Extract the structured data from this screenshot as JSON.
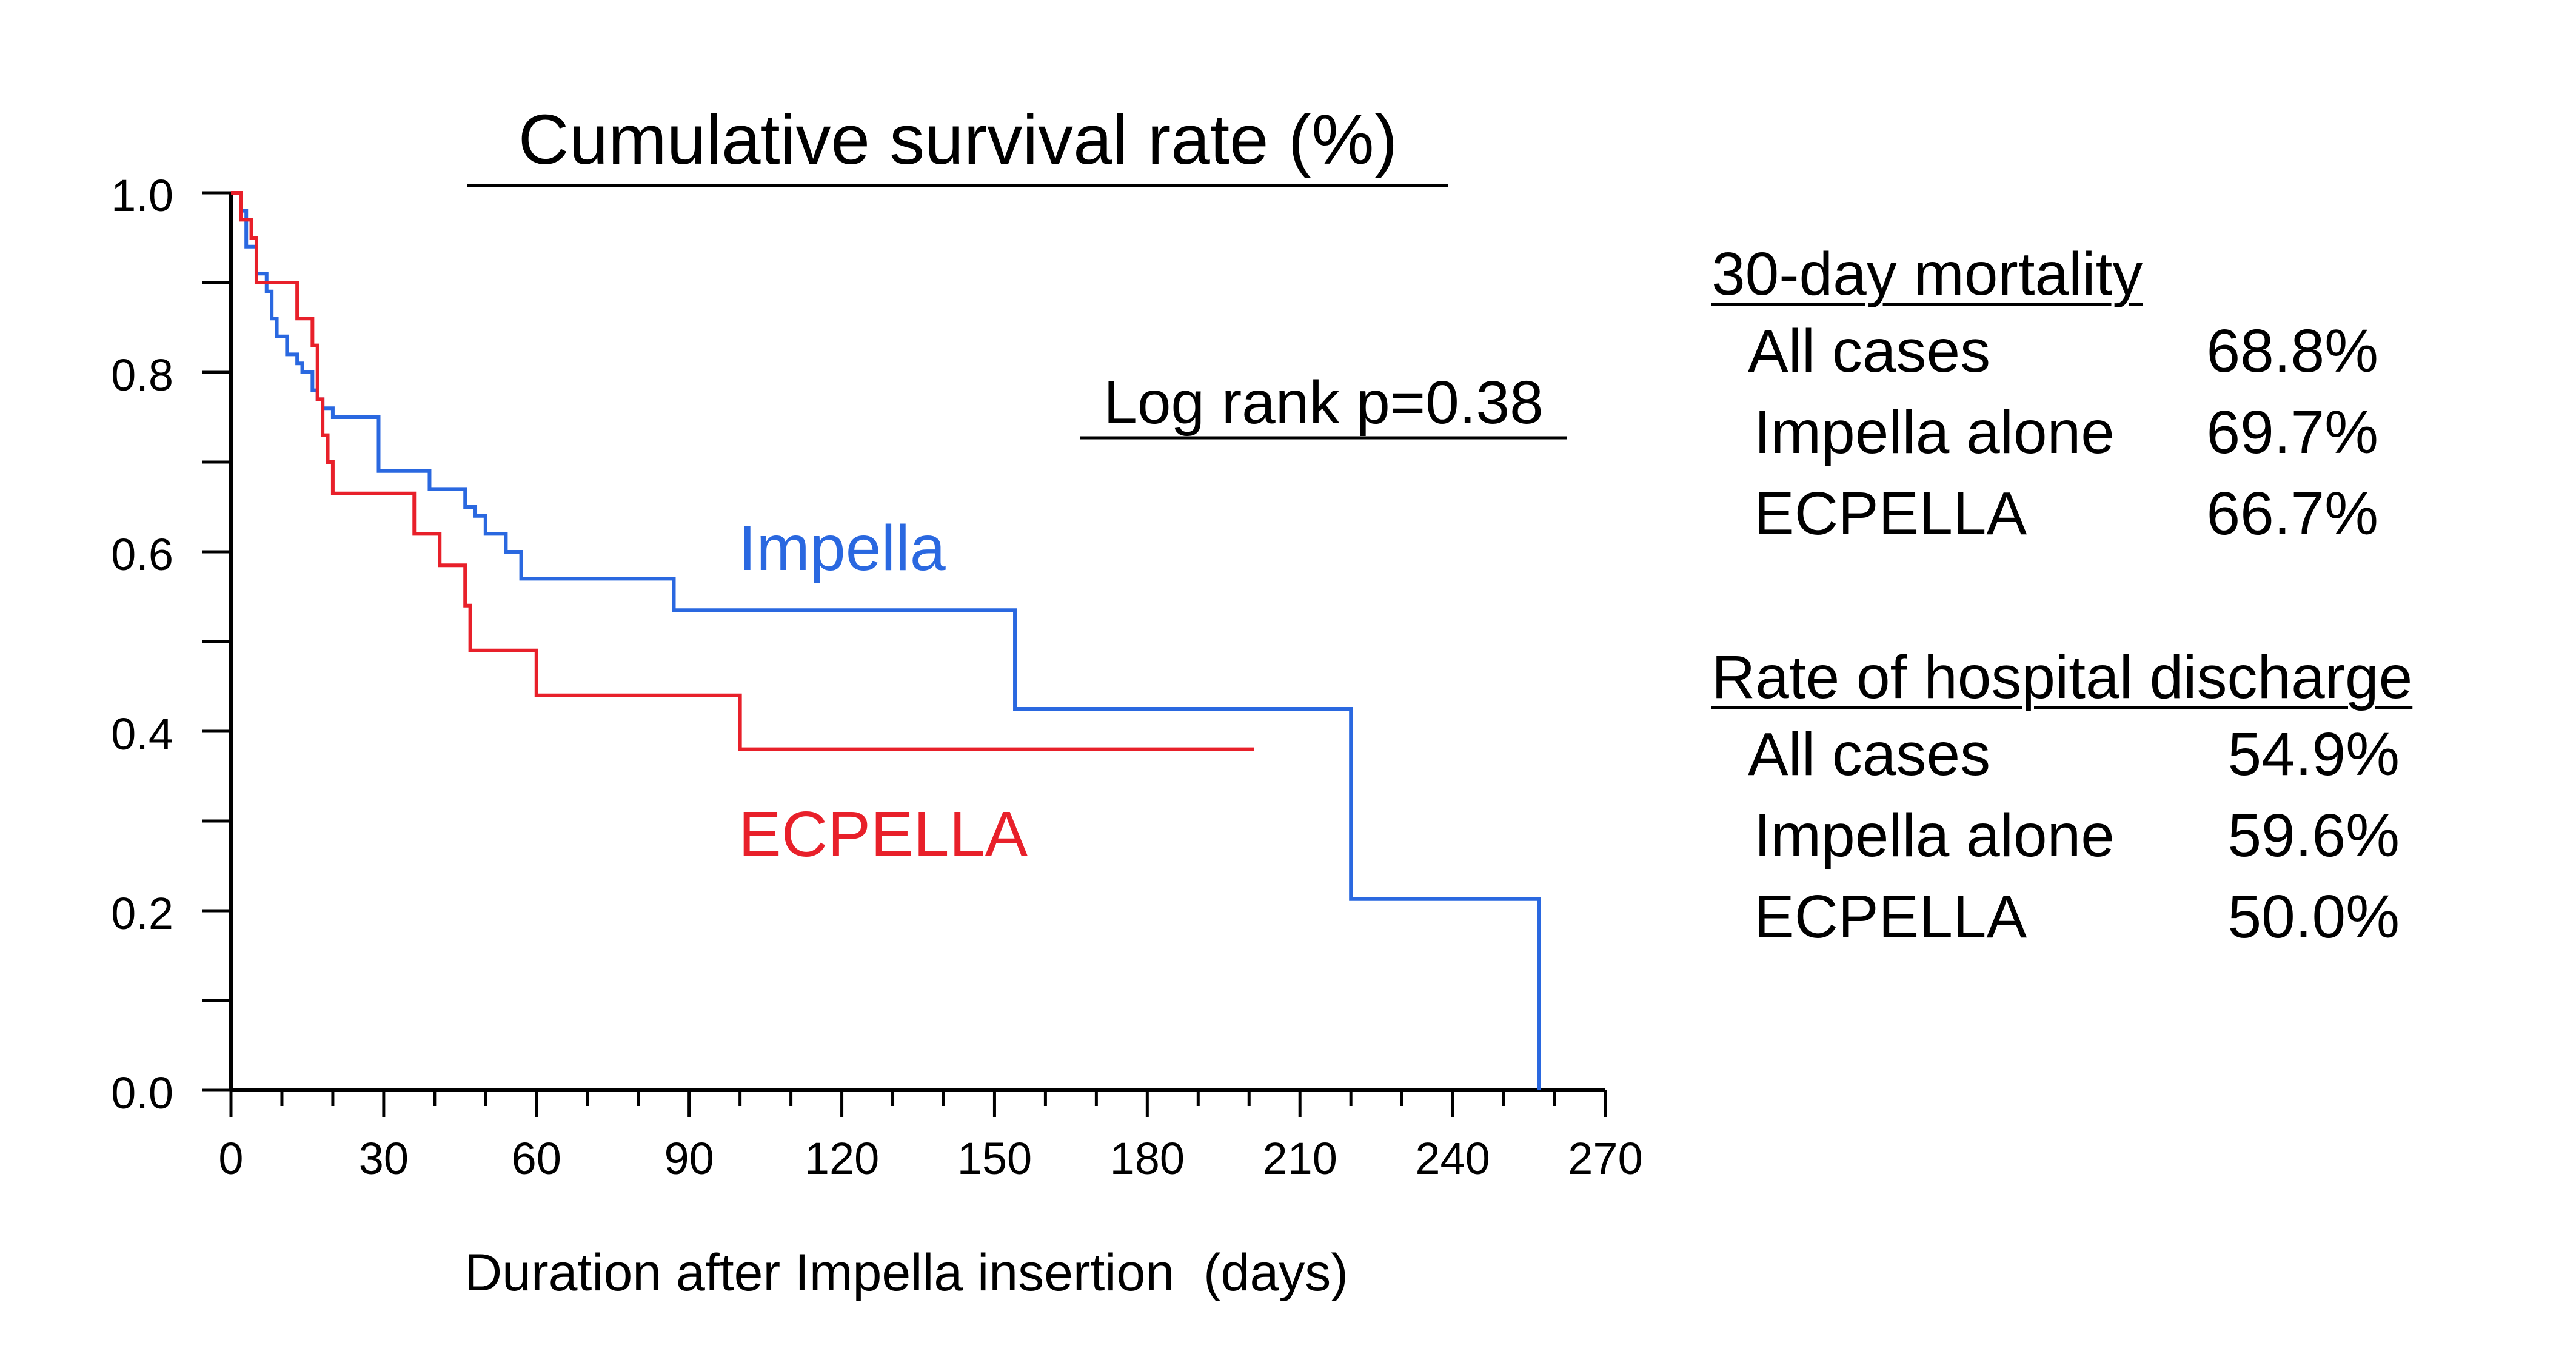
{
  "chart_data": {
    "type": "line",
    "title": "Cumulative survival rate (%)",
    "xlabel": "Duration after Impella insertion  (days)",
    "ylabel": "",
    "xlim": [
      0,
      270
    ],
    "ylim": [
      0,
      1.0
    ],
    "xticks": [
      0,
      30,
      60,
      90,
      120,
      150,
      180,
      210,
      240,
      270
    ],
    "xtick_labels": [
      "0",
      "30",
      "60",
      "90",
      "120",
      "150",
      "180",
      "210",
      "240",
      "270"
    ],
    "yticks": [
      0,
      0.2,
      0.4,
      0.6,
      0.8,
      1.0
    ],
    "ytick_labels": [
      "0.0",
      "0.2",
      "0.4",
      "0.6",
      "0.8",
      "1.0"
    ],
    "grid": false,
    "annotation": "Log rank p=0.38",
    "series": [
      {
        "name": "Impella",
        "color": "#2a68e0",
        "step": [
          [
            0,
            1.0
          ],
          [
            2,
            0.98
          ],
          [
            3,
            0.94
          ],
          [
            5,
            0.91
          ],
          [
            7,
            0.89
          ],
          [
            8,
            0.86
          ],
          [
            9,
            0.84
          ],
          [
            11,
            0.82
          ],
          [
            13,
            0.81
          ],
          [
            14,
            0.8
          ],
          [
            16,
            0.78
          ],
          [
            17,
            0.77
          ],
          [
            18,
            0.76
          ],
          [
            20,
            0.75
          ],
          [
            29,
            0.69
          ],
          [
            39,
            0.67
          ],
          [
            46,
            0.65
          ],
          [
            48,
            0.64
          ],
          [
            50,
            0.62
          ],
          [
            54,
            0.6
          ],
          [
            57,
            0.57
          ],
          [
            87,
            0.535
          ],
          [
            154,
            0.425
          ],
          [
            220,
            0.213
          ],
          [
            257,
            0.0
          ]
        ],
        "end_x": 257
      },
      {
        "name": "ECPELLA",
        "color": "#e8202a",
        "step": [
          [
            0,
            1.0
          ],
          [
            2,
            0.97
          ],
          [
            4,
            0.95
          ],
          [
            5,
            0.9
          ],
          [
            13,
            0.86
          ],
          [
            16,
            0.83
          ],
          [
            17,
            0.77
          ],
          [
            18,
            0.73
          ],
          [
            19,
            0.7
          ],
          [
            20,
            0.665
          ],
          [
            36,
            0.62
          ],
          [
            41,
            0.585
          ],
          [
            46,
            0.54
          ],
          [
            47,
            0.49
          ],
          [
            60,
            0.44
          ],
          [
            100,
            0.38
          ]
        ],
        "end_x": 201
      }
    ]
  },
  "labels": {
    "impella_curve": "Impella",
    "ecpella_curve": "ECPELLA"
  },
  "side_panel": {
    "mortality": {
      "heading": "30-day mortality",
      "rows": [
        {
          "label": "All cases",
          "value": "68.8%"
        },
        {
          "label": "Impella alone",
          "value": "69.7%"
        },
        {
          "label": "ECPELLA",
          "value": "66.7%"
        }
      ]
    },
    "discharge": {
      "heading": "Rate of hospital discharge",
      "rows": [
        {
          "label": "All cases",
          "value": "54.9%"
        },
        {
          "label": "Impella alone",
          "value": "59.6%"
        },
        {
          "label": "ECPELLA",
          "value": "50.0%"
        }
      ]
    }
  }
}
